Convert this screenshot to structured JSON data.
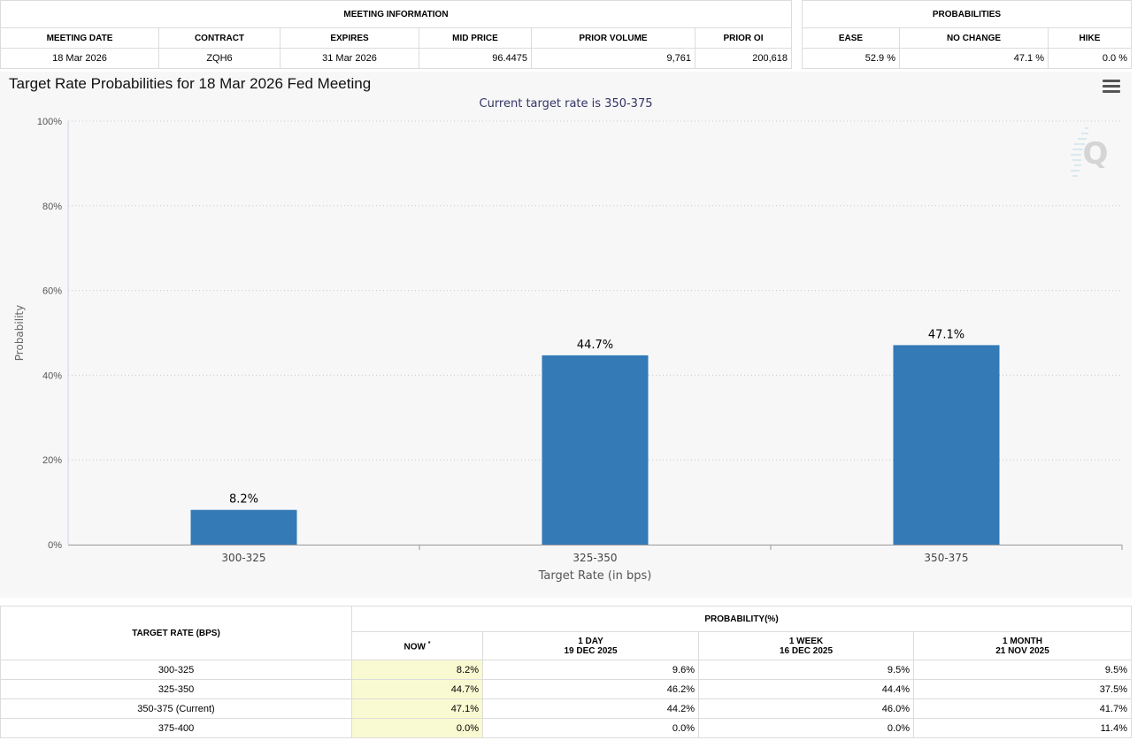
{
  "meeting_info": {
    "title": "MEETING INFORMATION",
    "headers": [
      "MEETING DATE",
      "CONTRACT",
      "EXPIRES",
      "MID PRICE",
      "PRIOR VOLUME",
      "PRIOR OI"
    ],
    "row": [
      "18 Mar 2026",
      "ZQH6",
      "31 Mar 2026",
      "96.4475",
      "9,761",
      "200,618"
    ]
  },
  "probabilities": {
    "title": "PROBABILITIES",
    "headers": [
      "EASE",
      "NO CHANGE",
      "HIKE"
    ],
    "row": [
      "52.9 %",
      "47.1 %",
      "0.0 %"
    ]
  },
  "chart": {
    "title": "Target Rate Probabilities for 18 Mar 2026 Fed Meeting",
    "subtitle": "Current target rate is 350-375"
  },
  "chart_data": {
    "type": "bar",
    "title": "Target Rate Probabilities for 18 Mar 2026 Fed Meeting",
    "subtitle": "Current target rate is 350-375",
    "categories": [
      "300-325",
      "325-350",
      "350-375"
    ],
    "values": [
      8.2,
      44.7,
      47.1
    ],
    "data_labels": [
      "8.2%",
      "44.7%",
      "47.1%"
    ],
    "xlabel": "Target Rate (in bps)",
    "ylabel": "Probability",
    "ylim": [
      0,
      100
    ],
    "yticks": [
      0,
      20,
      40,
      60,
      80,
      100
    ],
    "ytick_labels": [
      "0%",
      "20%",
      "40%",
      "60%",
      "80%",
      "100%"
    ],
    "grid": true,
    "bar_color": "#337ab7"
  },
  "rate_table": {
    "col_title": "TARGET RATE (BPS)",
    "group_title": "PROBABILITY(%)",
    "now_label": "NOW",
    "now_mark": "*",
    "periods": [
      {
        "label": "1 DAY",
        "date": "19 DEC 2025"
      },
      {
        "label": "1 WEEK",
        "date": "16 DEC 2025"
      },
      {
        "label": "1 MONTH",
        "date": "21 NOV 2025"
      }
    ],
    "rows": [
      {
        "rate": "300-325",
        "now": "8.2%",
        "d1": "9.6%",
        "w1": "9.5%",
        "m1": "9.5%"
      },
      {
        "rate": "325-350",
        "now": "44.7%",
        "d1": "46.2%",
        "w1": "44.4%",
        "m1": "37.5%"
      },
      {
        "rate": "350-375 (Current)",
        "now": "47.1%",
        "d1": "44.2%",
        "w1": "46.0%",
        "m1": "41.7%"
      },
      {
        "rate": "375-400",
        "now": "0.0%",
        "d1": "0.0%",
        "w1": "0.0%",
        "m1": "11.4%"
      }
    ]
  }
}
